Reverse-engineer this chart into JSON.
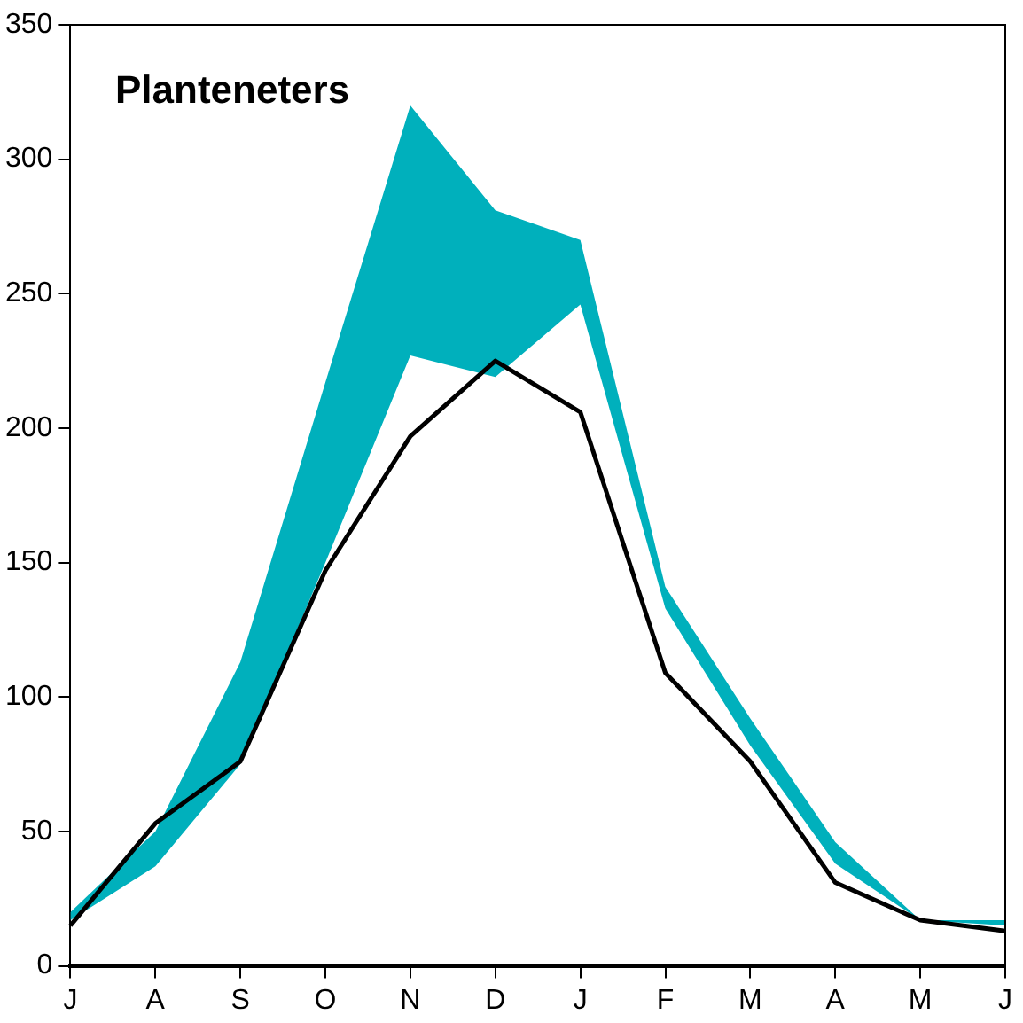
{
  "chart_data": {
    "type": "line",
    "title": "Planteneters",
    "categories": [
      "J",
      "A",
      "S",
      "O",
      "N",
      "D",
      "J",
      "F",
      "M",
      "A",
      "M",
      "J"
    ],
    "ylim": [
      0,
      350
    ],
    "yticks": [
      0,
      50,
      100,
      150,
      200,
      250,
      300,
      350
    ],
    "series": [
      {
        "type": "area",
        "color": "#00b0bc",
        "values": [
          null,
          null,
          null,
          null,
          null,
          null,
          null,
          null,
          null,
          null,
          null,
          null
        ],
        "lower": [
          17,
          37,
          75,
          150,
          227,
          219,
          246,
          133,
          82,
          38,
          17,
          15
        ],
        "upper": [
          20,
          50,
          113,
          217,
          320,
          281,
          270,
          141,
          92,
          46,
          17,
          17
        ]
      },
      {
        "type": "line",
        "color": "#000000",
        "values": [
          15,
          53,
          76,
          147,
          197,
          225,
          206,
          109,
          76,
          31,
          17,
          13
        ]
      }
    ]
  }
}
